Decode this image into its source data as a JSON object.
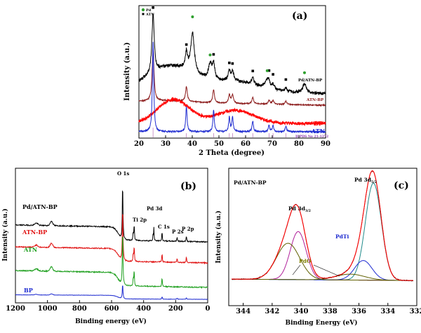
{
  "chart_data": [
    {
      "panel": "(a)",
      "type": "line",
      "xlabel": "2 Theta (degree)",
      "ylabel": "Intensity (a.u.)",
      "xlim": [
        20,
        90
      ],
      "xticks": [
        "20",
        "30",
        "40",
        "50",
        "60",
        "70",
        "80",
        "90"
      ],
      "legend": [
        "Pd",
        "ATN"
      ],
      "series": [
        {
          "name": "Pd/ATN-BP",
          "color": "#000000"
        },
        {
          "name": "ATN-BP",
          "color": "#8b1a1a"
        },
        {
          "name": "BP",
          "color": "#ff0000"
        },
        {
          "name": "ATN",
          "color": "#1e2bd0"
        }
      ],
      "reference": "JCPDS No 21-1272",
      "atn_peaks_2theta": [
        25.3,
        37.8,
        48.0,
        53.9,
        55.1,
        62.7,
        68.8,
        70.3,
        75.1
      ],
      "pd_peaks_2theta": [
        40.1,
        46.7,
        68.1,
        82.1
      ]
    },
    {
      "panel": "(b)",
      "type": "line",
      "xlabel": "Binding energy (eV)",
      "ylabel": "Intensity (a.u.)",
      "xlim": [
        1200,
        0
      ],
      "xticks": [
        "1200",
        "1000",
        "800",
        "600",
        "400",
        "200",
        "0"
      ],
      "series": [
        {
          "name": "Pd/ATN-BP",
          "color": "#000000"
        },
        {
          "name": "ATN-BP",
          "color": "#e01010"
        },
        {
          "name": "ATN",
          "color": "#20a020"
        },
        {
          "name": "BP",
          "color": "#1e2bd0"
        }
      ],
      "annotations": [
        "O 1s",
        "Pd 3d",
        "Ti 2p",
        "C 1s",
        "P 2s",
        "P 2p"
      ]
    },
    {
      "panel": "(c)",
      "type": "line",
      "title": "Pd/ATN-BP",
      "xlabel": "Binding Energy (eV)",
      "ylabel": "Intensity (a.u.)",
      "xlim": [
        345,
        332
      ],
      "xticks": [
        "344",
        "342",
        "340",
        "338",
        "336",
        "334",
        "332"
      ],
      "peaks": [
        {
          "label": "Pd 3d5/2",
          "position_eV": 335.0
        },
        {
          "label": "Pd 3d3/2",
          "position_eV": 340.2
        },
        {
          "label": "PdTi",
          "position_eV": 335.7
        },
        {
          "label": "PdO",
          "position_eV": 336.6
        },
        {
          "label": "PdO",
          "position_eV": 340.9
        }
      ]
    }
  ],
  "text": {
    "a_label": "(a)",
    "a_legend_pd": "Pd",
    "a_legend_atn": "ATN",
    "a_s1": "Pd/ATN-BP",
    "a_s2": "ATN-BP",
    "a_s3": "BP",
    "a_s4": "ATN",
    "a_ref": "JCPDS No 21-1272",
    "a_xlabel": "2 Theta (degree)",
    "a_ylabel": "Intensity (a.u.)",
    "b_label": "(b)",
    "b_s1": "Pd/ATN-BP",
    "b_s2": "ATN-BP",
    "b_s3": "ATN",
    "b_s4": "BP",
    "b_o1s": "O 1s",
    "b_pd3d": "Pd 3d",
    "b_ti2p": "Ti 2p",
    "b_c1s": "C 1s",
    "b_p2s": "P 2s",
    "b_p2p": "P 2p",
    "b_xlabel": "Binding energy (eV)",
    "b_ylabel": "Intensity (a.u.)",
    "c_label": "(c)",
    "c_title": "Pd/ATN-BP",
    "c_pd52": "Pd 3d",
    "c_pd52_sub": "5/2",
    "c_pd32": "Pd 3d",
    "c_pd32_sub": "3/2",
    "c_pdti": "PdTi",
    "c_pdo": "PdO",
    "c_xlabel": "Binding Energy (eV)",
    "c_ylabel": "Intensity (a.u.)"
  }
}
